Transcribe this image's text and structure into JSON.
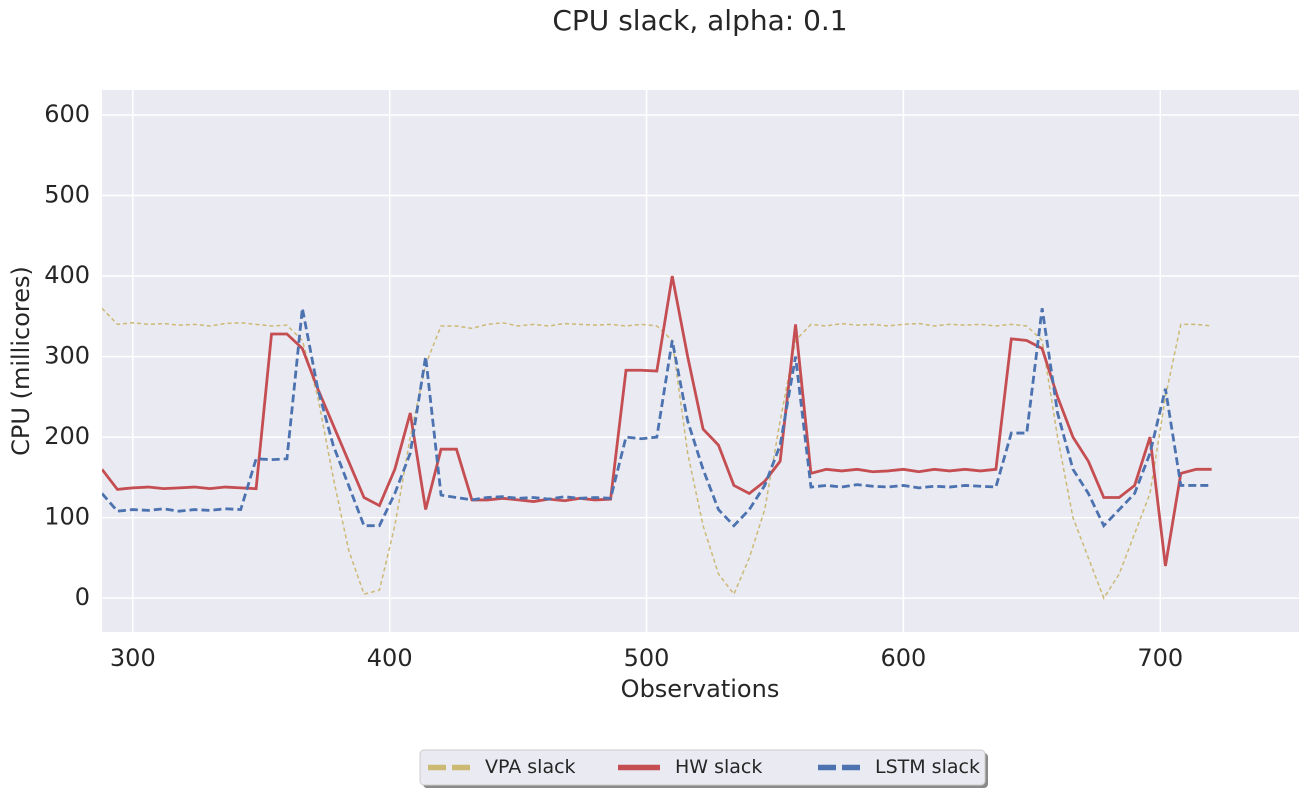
{
  "chart_data": {
    "type": "line",
    "title": "CPU slack, alpha: 0.1",
    "x_label": "Observations",
    "y_label": "CPU (millicores)",
    "xlim": [
      288,
      754
    ],
    "ylim": [
      -42,
      631
    ],
    "xticks": [
      300,
      400,
      500,
      600,
      700
    ],
    "yticks": [
      0,
      100,
      200,
      300,
      400,
      500,
      600
    ],
    "grid": true,
    "legend": "lower center",
    "x": [
      288,
      294,
      300,
      306,
      312,
      318,
      324,
      330,
      336,
      342,
      348,
      354,
      360,
      366,
      372,
      378,
      384,
      390,
      396,
      402,
      408,
      414,
      420,
      426,
      432,
      438,
      444,
      450,
      456,
      462,
      468,
      474,
      480,
      486,
      492,
      498,
      504,
      510,
      516,
      522,
      528,
      534,
      540,
      546,
      552,
      558,
      564,
      570,
      576,
      582,
      588,
      594,
      600,
      606,
      612,
      618,
      624,
      630,
      636,
      642,
      648,
      654,
      660,
      666,
      672,
      678,
      684,
      690,
      696,
      702,
      708,
      714,
      720
    ],
    "series": [
      {
        "name": "VPA slack",
        "color": "#ccb974",
        "values": [
          360,
          340,
          342,
          340,
          341,
          339,
          340,
          338,
          341,
          342,
          340,
          338,
          339,
          320,
          250,
          150,
          60,
          5,
          10,
          90,
          200,
          290,
          338,
          338,
          335,
          340,
          342,
          338,
          340,
          338,
          341,
          340,
          339,
          340,
          338,
          340,
          338,
          320,
          180,
          90,
          30,
          5,
          50,
          110,
          220,
          320,
          340,
          338,
          341,
          339,
          340,
          338,
          340,
          341,
          338,
          340,
          339,
          340,
          338,
          340,
          338,
          320,
          200,
          100,
          50,
          0,
          30,
          80,
          130,
          250,
          340,
          340,
          338
        ]
      },
      {
        "name": "HW slack",
        "color": "#c44e52",
        "values": [
          160,
          135,
          137,
          138,
          136,
          137,
          138,
          136,
          138,
          137,
          136,
          328,
          328,
          310,
          260,
          215,
          170,
          125,
          115,
          160,
          230,
          110,
          185,
          185,
          122,
          122,
          124,
          122,
          120,
          123,
          121,
          124,
          122,
          123,
          283,
          283,
          282,
          400,
          300,
          210,
          190,
          140,
          130,
          145,
          170,
          340,
          155,
          160,
          158,
          160,
          157,
          158,
          160,
          157,
          160,
          158,
          160,
          158,
          160,
          322,
          320,
          310,
          250,
          200,
          170,
          125,
          125,
          140,
          200,
          40,
          155,
          160,
          160
        ]
      },
      {
        "name": "LSTM slack",
        "color": "#4c72b0",
        "values": [
          130,
          108,
          110,
          109,
          111,
          108,
          110,
          109,
          111,
          110,
          173,
          172,
          173,
          360,
          260,
          190,
          140,
          90,
          90,
          130,
          180,
          300,
          128,
          125,
          122,
          125,
          126,
          124,
          125,
          123,
          126,
          124,
          125,
          124,
          200,
          198,
          200,
          320,
          220,
          160,
          110,
          90,
          110,
          140,
          190,
          300,
          138,
          140,
          138,
          141,
          139,
          138,
          140,
          137,
          139,
          138,
          140,
          139,
          138,
          205,
          205,
          360,
          230,
          160,
          130,
          90,
          110,
          130,
          180,
          260,
          140,
          140,
          140
        ]
      }
    ]
  }
}
